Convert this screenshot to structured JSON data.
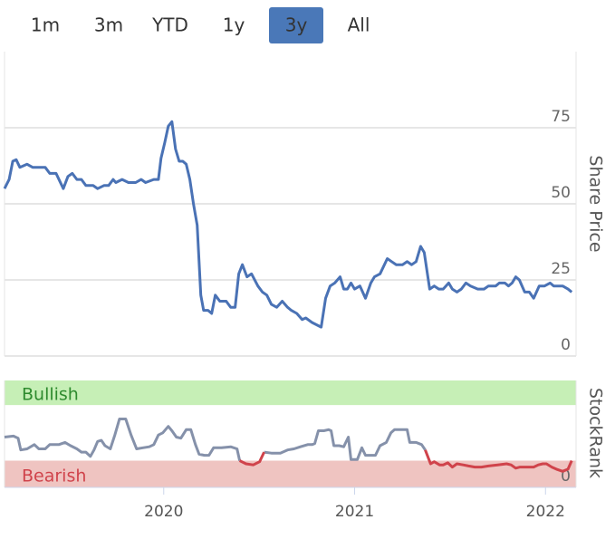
{
  "range_buttons": {
    "labels": [
      "1m",
      "3m",
      "YTD",
      "1y",
      "3y",
      "All"
    ],
    "selected": 4
  },
  "chart_data": [
    {
      "type": "line",
      "y_label": "Share Price",
      "x": [
        2019.166,
        2019.19,
        2019.209,
        2019.227,
        2019.246,
        2019.284,
        2019.313,
        2019.355,
        2019.379,
        2019.403,
        2019.436,
        2019.474,
        2019.498,
        2019.521,
        2019.545,
        2019.569,
        2019.592,
        2019.63,
        2019.654,
        2019.687,
        2019.711,
        2019.735,
        2019.749,
        2019.782,
        2019.815,
        2019.853,
        2019.882,
        2019.905,
        2019.948,
        2019.972,
        2019.986,
        2020.005,
        2020.024,
        2020.043,
        2020.062,
        2020.081,
        2020.1,
        2020.118,
        2020.137,
        2020.156,
        2020.175,
        2020.194,
        2020.209,
        2020.232,
        2020.251,
        2020.27,
        2020.294,
        2020.327,
        2020.351,
        2020.374,
        2020.393,
        2020.412,
        2020.436,
        2020.46,
        2020.493,
        2020.517,
        2020.54,
        2020.564,
        2020.592,
        2020.621,
        2020.649,
        2020.668,
        2020.697,
        2020.725,
        2020.744,
        2020.777,
        2020.825,
        2020.848,
        2020.872,
        2020.896,
        2020.924,
        2020.943,
        2020.962,
        2020.981,
        2021.0,
        2021.028,
        2021.057,
        2021.085,
        2021.104,
        2021.133,
        2021.171,
        2021.194,
        2021.218,
        2021.251,
        2021.275,
        2021.299,
        2021.322,
        2021.346,
        2021.365,
        2021.393,
        2021.417,
        2021.441,
        2021.464,
        2021.493,
        2021.512,
        2021.536,
        2021.559,
        2021.583,
        2021.607,
        2021.645,
        2021.678,
        2021.701,
        2021.739,
        2021.758,
        2021.787,
        2021.806,
        2021.825,
        2021.844,
        2021.863,
        2021.891,
        2021.915,
        2021.938,
        2021.967,
        2021.995,
        2022.024,
        2022.043,
        2022.066,
        2022.09,
        2022.118,
        2022.137
      ],
      "series": [
        {
          "color": "#4a72b5",
          "values": [
            55,
            58,
            64,
            64.5,
            62,
            63,
            62,
            62,
            62,
            60,
            60,
            55,
            59,
            60,
            58,
            58,
            56,
            56,
            55,
            56,
            56,
            58,
            57,
            58,
            57,
            57,
            58,
            57,
            58,
            58,
            65,
            70,
            75.5,
            77,
            68,
            64,
            64,
            63,
            58,
            50,
            43,
            20,
            15,
            15,
            14,
            20,
            18,
            18,
            16,
            16,
            27,
            30,
            26,
            27,
            23,
            21,
            20,
            17,
            16,
            18,
            16,
            15,
            14,
            12,
            12.5,
            11,
            9.5,
            19,
            23,
            24,
            26,
            22,
            22,
            24,
            22,
            23,
            19,
            24,
            26,
            27,
            32,
            31,
            30,
            30,
            31,
            30,
            31,
            36,
            34,
            22,
            23,
            22,
            22,
            24,
            22,
            21,
            22,
            24,
            23,
            22,
            22,
            23,
            23,
            24,
            24,
            23,
            24,
            26,
            25,
            21,
            21,
            19,
            23,
            23,
            24,
            23,
            23,
            23,
            22,
            21
          ]
        }
      ],
      "xlim": [
        2019.166,
        2022.16
      ],
      "ylim": [
        0,
        100
      ],
      "yticks": [
        0,
        25,
        50,
        75
      ],
      "grid": true
    },
    {
      "type": "line",
      "y_label": "StockRank",
      "x": [
        2019.166,
        2019.213,
        2019.237,
        2019.251,
        2019.284,
        2019.322,
        2019.346,
        2019.379,
        2019.403,
        2019.45,
        2019.483,
        2019.512,
        2019.545,
        2019.569,
        2019.592,
        2019.616,
        2019.635,
        2019.654,
        2019.673,
        2019.692,
        2019.72,
        2019.744,
        2019.768,
        2019.801,
        2019.829,
        2019.858,
        2019.891,
        2019.924,
        2019.948,
        2019.972,
        2019.995,
        2020.024,
        2020.043,
        2020.066,
        2020.09,
        2020.118,
        2020.142,
        2020.166,
        2020.185,
        2020.213,
        2020.237,
        2020.261,
        2020.303,
        2020.351,
        2020.384,
        2020.398,
        2020.431,
        2020.469,
        2020.502,
        2020.526,
        2020.564,
        2020.611,
        2020.649,
        2020.682,
        2020.716,
        2020.754,
        2020.777,
        2020.791,
        2020.81,
        2020.839,
        2020.863,
        2020.877,
        2020.891,
        2020.919,
        2020.943,
        2020.967,
        2020.981,
        2021.014,
        2021.038,
        2021.057,
        2021.085,
        2021.109,
        2021.133,
        2021.166,
        2021.19,
        2021.209,
        2021.251,
        2021.275,
        2021.289,
        2021.322,
        2021.351,
        2021.37,
        2021.398,
        2021.417,
        2021.445,
        2021.464,
        2021.488,
        2021.512,
        2021.536,
        2021.569,
        2021.597,
        2021.63,
        2021.664,
        2021.701,
        2021.749,
        2021.796,
        2021.82,
        2021.844,
        2021.867,
        2021.9,
        2021.938,
        2021.962,
        2021.986,
        2022.005,
        2022.033,
        2022.057,
        2022.09,
        2022.118,
        2022.137
      ],
      "series": [
        {
          "color": "#8591aa",
          "values": [
            47,
            48,
            46,
            35,
            36,
            40,
            36,
            36,
            40,
            40,
            42,
            39,
            36,
            33,
            33,
            29,
            35,
            43,
            44,
            39,
            36,
            49,
            64,
            64,
            49,
            36,
            37,
            38,
            40,
            49,
            51,
            57,
            53,
            47,
            46,
            54,
            54,
            40,
            31,
            30,
            30,
            37,
            37,
            38,
            36,
            25,
            null,
            null,
            null,
            33,
            32,
            32,
            35,
            36,
            38,
            40,
            40,
            41,
            53,
            53,
            54,
            53,
            39,
            39,
            38,
            47,
            26,
            26,
            37,
            30,
            30,
            30,
            39,
            42,
            51,
            54,
            54,
            54,
            42,
            42,
            40,
            35,
            null,
            null,
            null,
            null,
            null,
            null,
            null,
            null,
            null,
            null,
            null,
            null,
            null,
            null,
            null,
            null,
            null,
            null,
            null,
            null,
            null,
            null,
            null,
            null,
            null,
            null,
            null
          ]
        },
        {
          "color": "#d0434b",
          "values": [
            null,
            null,
            null,
            null,
            null,
            null,
            null,
            null,
            null,
            null,
            null,
            null,
            null,
            null,
            null,
            null,
            null,
            null,
            null,
            null,
            null,
            null,
            null,
            null,
            null,
            null,
            null,
            null,
            null,
            null,
            null,
            null,
            null,
            null,
            null,
            null,
            null,
            null,
            null,
            null,
            null,
            null,
            null,
            null,
            null,
            25,
            22,
            21,
            24,
            33,
            null,
            null,
            null,
            null,
            null,
            null,
            null,
            null,
            null,
            null,
            null,
            null,
            null,
            null,
            null,
            null,
            null,
            null,
            null,
            null,
            null,
            null,
            null,
            null,
            null,
            null,
            null,
            null,
            null,
            null,
            null,
            35,
            22,
            24,
            21,
            21,
            23,
            19,
            22,
            21,
            20,
            19,
            19,
            20,
            21,
            22,
            21,
            18,
            19,
            19,
            19,
            21,
            22,
            22,
            19,
            17,
            15,
            17,
            25
          ]
        }
      ],
      "bands": [
        {
          "label": "Bullish",
          "from": 77,
          "to": 100,
          "color": "#c6efb6",
          "text_color": "#2e8b2e"
        },
        {
          "label": "Bearish",
          "from": 0,
          "to": 25,
          "color": "#efc4c1",
          "text_color": "#d0434b"
        }
      ],
      "xlim": [
        2019.166,
        2022.16
      ],
      "ylim": [
        0,
        100
      ],
      "yticks": [
        0
      ],
      "xticks": [
        2020,
        2021,
        2022
      ]
    }
  ]
}
